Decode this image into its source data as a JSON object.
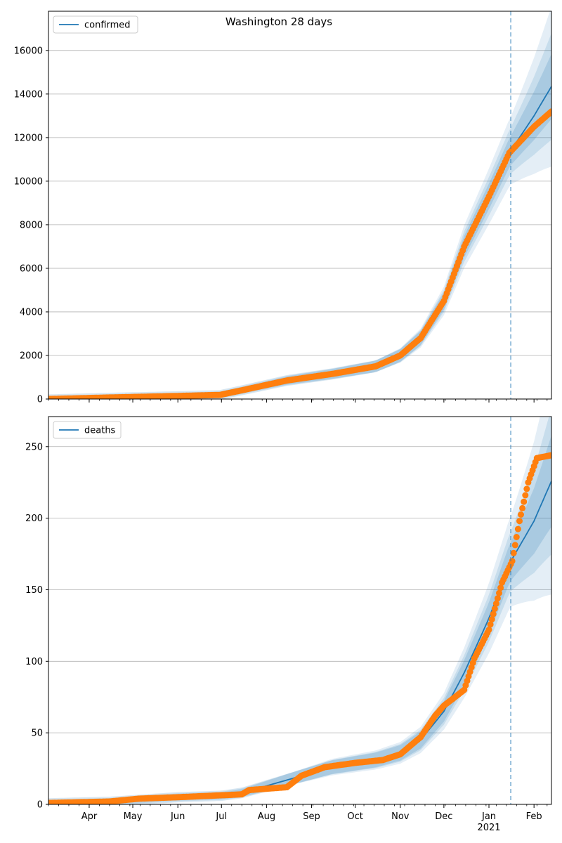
{
  "title": "Washington 28 days",
  "colors": {
    "model": "#1f77b4",
    "observed": "#ff7f0e",
    "band": "#1f77b4",
    "grid": "#b0b0b0",
    "forecast_line": "#1f77b4"
  },
  "x_ticks": [
    {
      "date": "2020-04-01",
      "label": "Apr"
    },
    {
      "date": "2020-05-01",
      "label": "May"
    },
    {
      "date": "2020-06-01",
      "label": "Jun"
    },
    {
      "date": "2020-07-01",
      "label": "Jul"
    },
    {
      "date": "2020-08-01",
      "label": "Aug"
    },
    {
      "date": "2020-09-01",
      "label": "Sep"
    },
    {
      "date": "2020-10-01",
      "label": "Oct"
    },
    {
      "date": "2020-11-01",
      "label": "Nov"
    },
    {
      "date": "2020-12-01",
      "label": "Dec"
    },
    {
      "date": "2021-01-01",
      "label": "Jan"
    },
    {
      "date": "2021-02-01",
      "label": "Feb"
    }
  ],
  "x_year_label": "2021",
  "chart_data": [
    {
      "type": "line",
      "legend": "confirmed",
      "legend_position": "upper-left",
      "grid": "horizontal",
      "xlim": [
        "2020-03-04",
        "2021-02-13"
      ],
      "ylim": [
        0,
        17800
      ],
      "y_ticks": [
        0,
        2000,
        4000,
        6000,
        8000,
        10000,
        12000,
        14000,
        16000
      ],
      "forecast_start": "2021-01-16",
      "model_series": {
        "name": "confirmed",
        "points": [
          [
            "2020-03-04",
            0
          ],
          [
            "2020-04-15",
            70
          ],
          [
            "2020-06-01",
            140
          ],
          [
            "2020-06-30",
            190
          ],
          [
            "2020-07-15",
            400
          ],
          [
            "2020-08-15",
            850
          ],
          [
            "2020-09-15",
            1150
          ],
          [
            "2020-10-15",
            1500
          ],
          [
            "2020-11-01",
            2000
          ],
          [
            "2020-11-15",
            2800
          ],
          [
            "2020-12-01",
            4500
          ],
          [
            "2020-12-15",
            7000
          ],
          [
            "2021-01-01",
            9300
          ],
          [
            "2021-01-15",
            11300
          ],
          [
            "2021-02-01",
            13000
          ],
          [
            "2021-02-13",
            14350
          ]
        ],
        "bands": [
          {
            "lower": [
              [
                0,
                0
              ]
            ],
            "upper": [
              [
                0,
                0
              ]
            ]
          }
        ]
      },
      "band_halfwidth_frac": [
        0.04,
        0.08,
        0.13
      ],
      "observed": {
        "points": [
          [
            "2020-03-04",
            0
          ],
          [
            "2020-04-15",
            70
          ],
          [
            "2020-06-01",
            140
          ],
          [
            "2020-06-30",
            190
          ],
          [
            "2020-07-15",
            400
          ],
          [
            "2020-08-15",
            850
          ],
          [
            "2020-09-15",
            1150
          ],
          [
            "2020-10-15",
            1500
          ],
          [
            "2020-11-01",
            2000
          ],
          [
            "2020-11-15",
            2800
          ],
          [
            "2020-12-01",
            4500
          ],
          [
            "2020-12-15",
            7000
          ],
          [
            "2021-01-01",
            9300
          ],
          [
            "2021-01-15",
            11300
          ],
          [
            "2021-02-01",
            12500
          ],
          [
            "2021-02-13",
            13200
          ]
        ]
      }
    },
    {
      "type": "line",
      "legend": "deaths",
      "legend_position": "upper-left",
      "grid": "horizontal",
      "xlim": [
        "2020-03-04",
        "2021-02-13"
      ],
      "ylim": [
        0,
        271
      ],
      "y_ticks": [
        0,
        50,
        100,
        150,
        200,
        250
      ],
      "forecast_start": "2021-01-16",
      "model_series": {
        "name": "deaths",
        "points": [
          [
            "2020-03-04",
            1
          ],
          [
            "2020-04-15",
            2
          ],
          [
            "2020-06-01",
            5
          ],
          [
            "2020-07-01",
            6
          ],
          [
            "2020-07-15",
            8
          ],
          [
            "2020-08-15",
            17
          ],
          [
            "2020-09-15",
            26
          ],
          [
            "2020-10-15",
            31
          ],
          [
            "2020-11-01",
            36
          ],
          [
            "2020-11-15",
            45
          ],
          [
            "2020-12-01",
            65
          ],
          [
            "2020-12-15",
            92
          ],
          [
            "2021-01-01",
            130
          ],
          [
            "2021-01-15",
            168
          ],
          [
            "2021-02-01",
            198
          ],
          [
            "2021-02-13",
            226
          ]
        ],
        "bands": [
          {
            "lower": [
              [
                0,
                0
              ]
            ],
            "upper": [
              [
                0,
                0
              ]
            ]
          }
        ]
      },
      "band_halfwidth_frac": [
        0.06,
        0.11,
        0.18
      ],
      "observed": {
        "points": [
          [
            "2020-03-04",
            1
          ],
          [
            "2020-04-15",
            2
          ],
          [
            "2020-05-05",
            4
          ],
          [
            "2020-06-01",
            5
          ],
          [
            "2020-07-15",
            7
          ],
          [
            "2020-07-20",
            10
          ],
          [
            "2020-08-15",
            12
          ],
          [
            "2020-08-25",
            20
          ],
          [
            "2020-09-10",
            26
          ],
          [
            "2020-10-01",
            29
          ],
          [
            "2020-10-20",
            31
          ],
          [
            "2020-11-01",
            35
          ],
          [
            "2020-11-15",
            47
          ],
          [
            "2020-11-25",
            62
          ],
          [
            "2020-12-01",
            69
          ],
          [
            "2020-12-15",
            80
          ],
          [
            "2020-12-22",
            102
          ],
          [
            "2021-01-01",
            122
          ],
          [
            "2021-01-10",
            155
          ],
          [
            "2021-01-17",
            170
          ],
          [
            "2021-01-22",
            198
          ],
          [
            "2021-01-28",
            225
          ],
          [
            "2021-02-03",
            242
          ],
          [
            "2021-02-13",
            244
          ]
        ]
      }
    }
  ]
}
